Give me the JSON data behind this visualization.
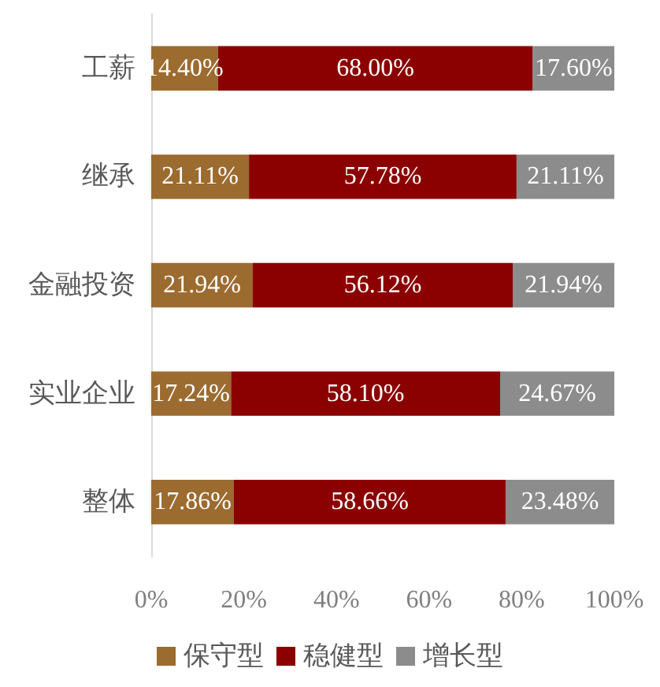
{
  "chart_data": {
    "type": "bar",
    "orientation": "horizontal",
    "stacked": true,
    "categories": [
      "工薪",
      "继承",
      "金融投资",
      "实业企业",
      "整体"
    ],
    "series": [
      {
        "name": "保守型",
        "color": "#9c6b30",
        "values": [
          14.4,
          21.11,
          21.94,
          17.24,
          17.86
        ],
        "value_labels": [
          "14.40%",
          "21.11%",
          "21.94%",
          "17.24%",
          "17.86%"
        ]
      },
      {
        "name": "稳健型",
        "color": "#8b0000",
        "values": [
          68.0,
          57.78,
          56.12,
          58.1,
          58.66
        ],
        "value_labels": [
          "68.00%",
          "57.78%",
          "56.12%",
          "58.10%",
          "58.66%"
        ]
      },
      {
        "name": "增长型",
        "color": "#8c8c8c",
        "values": [
          17.6,
          21.11,
          21.94,
          24.67,
          23.48
        ],
        "value_labels": [
          "17.60%",
          "21.11%",
          "21.94%",
          "24.67%",
          "23.48%"
        ]
      }
    ],
    "xlim": [
      0,
      100
    ],
    "xticks": [
      {
        "value": 0,
        "label": "0%"
      },
      {
        "value": 20,
        "label": "20%"
      },
      {
        "value": 40,
        "label": "40%"
      },
      {
        "value": 60,
        "label": "60%"
      },
      {
        "value": 80,
        "label": "80%"
      },
      {
        "value": 100,
        "label": "100%"
      }
    ],
    "grid": false,
    "legend": "bottom"
  }
}
